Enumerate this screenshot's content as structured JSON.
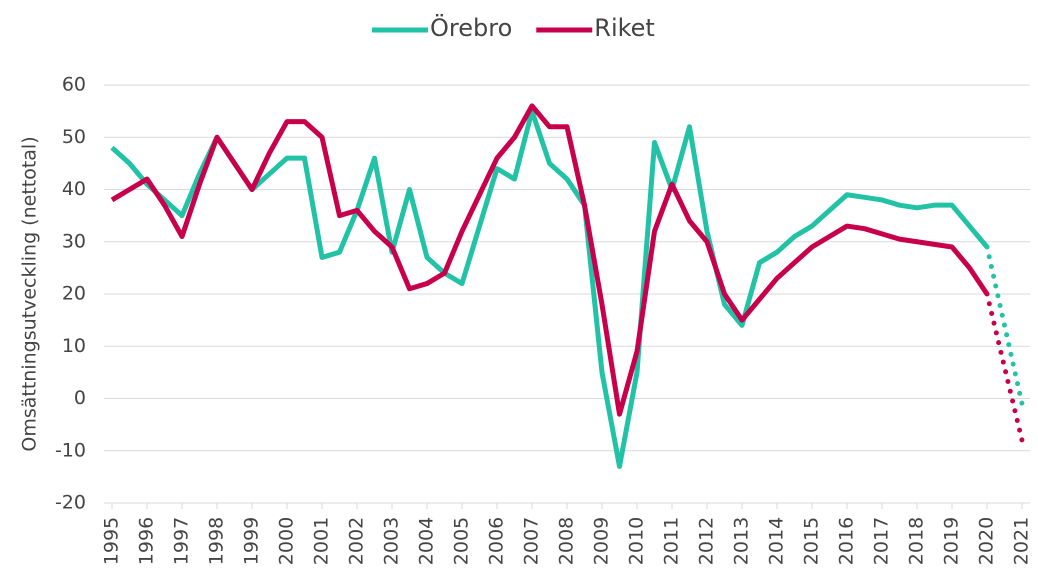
{
  "chart_data": {
    "type": "line",
    "y_label": "Omsättningsutveckling (nettotal)",
    "x": [
      1995,
      1995.5,
      1996,
      1996.5,
      1997,
      1997.5,
      1998,
      1998.5,
      1999,
      1999.5,
      2000,
      2000.5,
      2001,
      2001.5,
      2002,
      2002.5,
      2003,
      2003.5,
      2004,
      2004.5,
      2005,
      2005.5,
      2006,
      2006.5,
      2007,
      2007.5,
      2008,
      2008.5,
      2009,
      2009.5,
      2010,
      2010.5,
      2011,
      2011.5,
      2012,
      2012.5,
      2013,
      2013.5,
      2014,
      2014.5,
      2015,
      2015.5,
      2016,
      2016.5,
      2017,
      2017.5,
      2018,
      2018.5,
      2019,
      2019.5,
      2020,
      2020.5,
      2021
    ],
    "series": [
      {
        "name": "Örebro",
        "color": "#22c2a6",
        "values": [
          48,
          45,
          41,
          38,
          35,
          43,
          50,
          45,
          40,
          43,
          46,
          46,
          27,
          28,
          36,
          46,
          28,
          40,
          27,
          24,
          22,
          33,
          44,
          42,
          55,
          45,
          42,
          37,
          5,
          -13,
          5,
          49,
          40,
          52,
          32,
          18,
          14,
          26,
          28,
          31,
          33,
          36,
          39,
          38.5,
          38,
          37,
          36.5,
          37,
          37,
          33,
          29,
          14,
          -1
        ]
      },
      {
        "name": "Riket",
        "color": "#c8004b",
        "values": [
          38,
          40,
          42,
          37,
          31,
          41,
          50,
          45,
          40,
          47,
          53,
          53,
          50,
          35,
          36,
          32,
          29,
          21,
          22,
          24,
          32,
          39,
          46,
          50,
          56,
          52,
          52,
          37,
          18,
          -3,
          9,
          32,
          41,
          34,
          30,
          20,
          15,
          19,
          23,
          26,
          29,
          31,
          33,
          32.5,
          31.5,
          30.5,
          30,
          29.5,
          29,
          25,
          20,
          6,
          -8
        ]
      }
    ],
    "dotted_from": 2020,
    "xlim": [
      1995,
      2021
    ],
    "xticks": [
      1995,
      1996,
      1997,
      1998,
      1999,
      2000,
      2001,
      2002,
      2003,
      2004,
      2005,
      2006,
      2007,
      2008,
      2009,
      2010,
      2011,
      2012,
      2013,
      2014,
      2015,
      2016,
      2017,
      2018,
      2019,
      2020,
      2021
    ],
    "ylim": [
      -20,
      60
    ],
    "yticks": [
      -20,
      -10,
      0,
      10,
      20,
      30,
      40,
      50,
      60
    ],
    "grid": true,
    "legend": "top"
  }
}
